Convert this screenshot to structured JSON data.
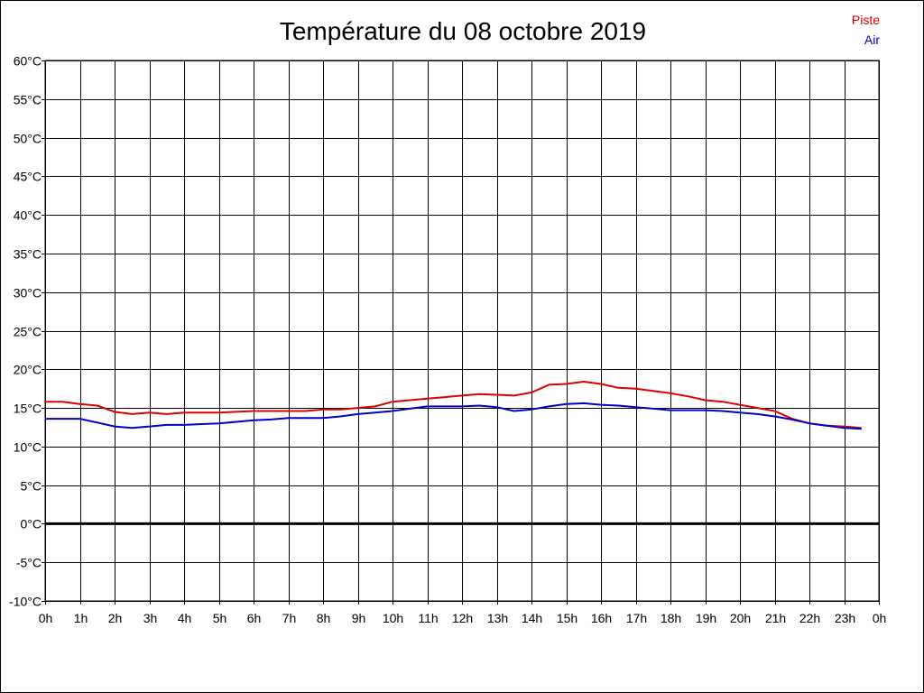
{
  "chart_data": {
    "type": "line",
    "title": "Température du 08 octobre 2019",
    "xlabel": "",
    "ylabel": "",
    "x_unit": "h",
    "xlim": [
      0,
      24
    ],
    "ylim": [
      -10,
      60
    ],
    "y_ticks": [
      -10,
      -5,
      0,
      5,
      10,
      15,
      20,
      25,
      30,
      35,
      40,
      45,
      50,
      55,
      60
    ],
    "y_tick_suffix": "°C",
    "x_tick_labels": [
      "0h",
      "1h",
      "2h",
      "3h",
      "4h",
      "5h",
      "6h",
      "7h",
      "8h",
      "9h",
      "10h",
      "11h",
      "12h",
      "13h",
      "14h",
      "15h",
      "16h",
      "17h",
      "18h",
      "19h",
      "20h",
      "21h",
      "22h",
      "23h",
      "0h"
    ],
    "grid": true,
    "zero_line": true,
    "legend": "top-right",
    "series": [
      {
        "name": "Piste",
        "color": "#dd0000",
        "x": [
          0,
          0.5,
          1,
          1.5,
          2,
          2.5,
          3,
          3.5,
          4,
          4.5,
          5,
          5.5,
          6,
          6.5,
          7,
          7.5,
          8,
          8.5,
          9,
          9.5,
          10,
          10.5,
          11,
          11.5,
          12,
          12.5,
          13,
          13.5,
          14,
          14.5,
          15,
          15.5,
          16,
          16.5,
          17,
          17.5,
          18,
          18.5,
          19,
          19.5,
          20,
          20.5,
          21,
          21.5,
          22,
          22.5,
          23,
          23.5
        ],
        "values": [
          15.8,
          15.8,
          15.5,
          15.3,
          14.5,
          14.2,
          14.4,
          14.2,
          14.4,
          14.4,
          14.4,
          14.5,
          14.6,
          14.6,
          14.6,
          14.6,
          14.8,
          14.8,
          15.0,
          15.2,
          15.8,
          16.0,
          16.2,
          16.4,
          16.6,
          16.8,
          16.7,
          16.6,
          17.0,
          18.0,
          18.1,
          18.4,
          18.1,
          17.6,
          17.5,
          17.2,
          16.9,
          16.5,
          16.0,
          15.8,
          15.4,
          15.0,
          14.6,
          13.6,
          13.0,
          12.7,
          12.6,
          12.4
        ]
      },
      {
        "name": "Air",
        "color": "#0000cc",
        "x": [
          0,
          0.5,
          1,
          1.5,
          2,
          2.5,
          3,
          3.5,
          4,
          4.5,
          5,
          5.5,
          6,
          6.5,
          7,
          7.5,
          8,
          8.5,
          9,
          9.5,
          10,
          10.5,
          11,
          11.5,
          12,
          12.5,
          13,
          13.5,
          14,
          14.5,
          15,
          15.5,
          16,
          16.5,
          17,
          17.5,
          18,
          18.5,
          19,
          19.5,
          20,
          20.5,
          21,
          21.5,
          22,
          22.5,
          23,
          23.5
        ],
        "values": [
          13.6,
          13.6,
          13.6,
          13.1,
          12.6,
          12.4,
          12.6,
          12.8,
          12.8,
          12.9,
          13.0,
          13.2,
          13.4,
          13.5,
          13.7,
          13.7,
          13.7,
          13.9,
          14.2,
          14.4,
          14.6,
          14.9,
          15.2,
          15.2,
          15.2,
          15.3,
          15.1,
          14.6,
          14.8,
          15.2,
          15.5,
          15.6,
          15.4,
          15.3,
          15.1,
          14.9,
          14.7,
          14.7,
          14.7,
          14.6,
          14.4,
          14.2,
          13.9,
          13.5,
          13.0,
          12.7,
          12.4,
          12.3
        ]
      }
    ]
  }
}
